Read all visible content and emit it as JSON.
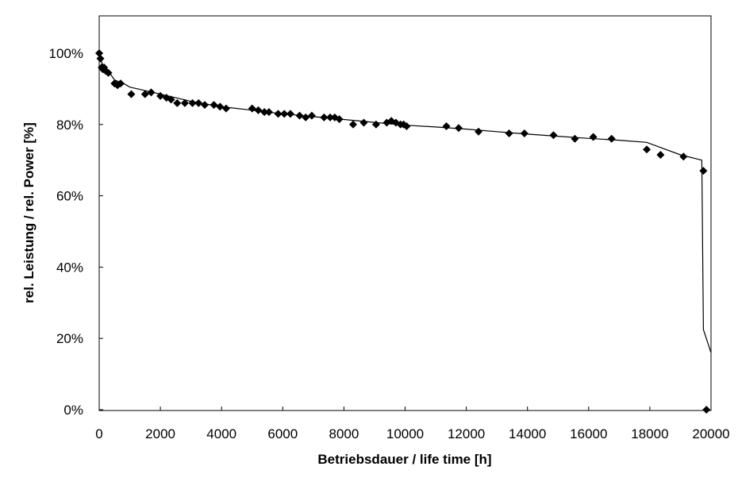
{
  "chart_data": {
    "type": "scatter",
    "xlabel": "Betriebsdauer / life time [h]",
    "ylabel": "rel. Leistung / rel. Power [%]",
    "xlim": [
      0,
      20000
    ],
    "ylim": [
      0,
      110
    ],
    "x_ticks": [
      0,
      2000,
      4000,
      6000,
      8000,
      10000,
      12000,
      14000,
      16000,
      18000,
      20000
    ],
    "y_ticks": [
      0,
      20,
      40,
      60,
      80,
      100
    ],
    "y_tick_suffix": "%",
    "grid": false,
    "legend": "none",
    "series": [
      {
        "kind": "markers",
        "marker": "diamond",
        "color": "#000000",
        "x": [
          0,
          40,
          80,
          120,
          160,
          220,
          300,
          500,
          600,
          700,
          1050,
          1500,
          1700,
          2000,
          2200,
          2350,
          2550,
          2800,
          3050,
          3250,
          3450,
          3750,
          3950,
          4150,
          5000,
          5200,
          5400,
          5550,
          5850,
          6050,
          6250,
          6550,
          6750,
          6950,
          7350,
          7550,
          7700,
          7850,
          8300,
          8650,
          9050,
          9400,
          9550,
          9700,
          9850,
          9950,
          10050,
          11350,
          11750,
          12400,
          13400,
          13900,
          14850,
          15550,
          16150,
          16750,
          17900,
          18350,
          19100,
          19750,
          19850
        ],
        "y": [
          100,
          98.5,
          96,
          95.5,
          96,
          95,
          94.5,
          91.5,
          91,
          91.5,
          88.5,
          88.5,
          89,
          88,
          87.5,
          87,
          86,
          86,
          86,
          86,
          85.5,
          85.5,
          85,
          84.5,
          84.5,
          84,
          83.5,
          83.5,
          83,
          83,
          83,
          82.5,
          82,
          82.5,
          82,
          82,
          82,
          81.5,
          80,
          80.5,
          80,
          80.5,
          81,
          80.5,
          80,
          80,
          79.5,
          79.5,
          79,
          78,
          77.5,
          77.5,
          77,
          76,
          76.5,
          76,
          73,
          71.5,
          71,
          67,
          0
        ]
      },
      {
        "kind": "line",
        "color": "#000000",
        "x": [
          0,
          100,
          300,
          500,
          800,
          1000,
          1500,
          2000,
          2500,
          3000,
          4000,
          5000,
          6000,
          7000,
          8000,
          9000,
          10000,
          11000,
          12000,
          13000,
          14000,
          15000,
          16000,
          17000,
          17900,
          18300,
          19000,
          19700,
          19750,
          20000
        ],
        "y": [
          100,
          97,
          95,
          92.5,
          91.5,
          90.5,
          89.5,
          88.5,
          87.5,
          86.5,
          85,
          84,
          83,
          82.2,
          81.4,
          80.6,
          79.8,
          79.3,
          78.7,
          78,
          77.3,
          76.7,
          76.1,
          75.6,
          75,
          73.7,
          71.5,
          70,
          22.5,
          16
        ]
      }
    ]
  }
}
